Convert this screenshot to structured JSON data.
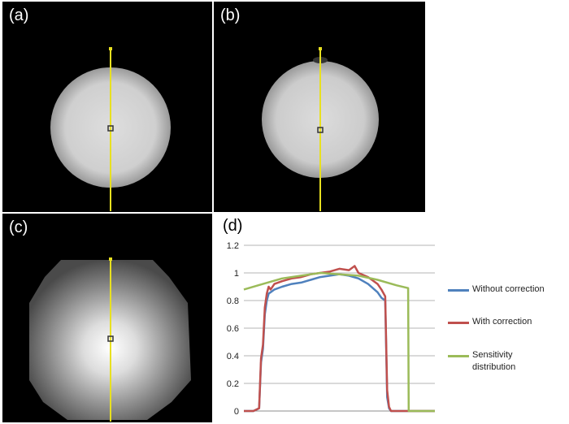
{
  "panels": {
    "a": {
      "label": "(a)"
    },
    "b": {
      "label": "(b)"
    },
    "c": {
      "label": "(c)"
    },
    "d": {
      "label": "(d)"
    }
  },
  "colors": {
    "yellow": "#e8e020",
    "without": "#4f81bd",
    "with": "#c0504d",
    "sensitivity": "#9bbb59"
  },
  "chart_data": {
    "type": "line",
    "title": "",
    "xlabel": "",
    "ylabel": "",
    "ylim": [
      0,
      1.2
    ],
    "yticks": [
      "0",
      "0.2",
      "0.4",
      "0.6",
      "0.8",
      "1",
      "1.2"
    ],
    "xlim": [
      0,
      100
    ],
    "series": [
      {
        "name": "Without correction",
        "color": "#4f81bd",
        "x": [
          0,
          5,
          8,
          9,
          10,
          11,
          12,
          13,
          14,
          16,
          20,
          25,
          30,
          35,
          40,
          45,
          50,
          55,
          60,
          65,
          70,
          72,
          74,
          75,
          76,
          77,
          80,
          85,
          90,
          95,
          100
        ],
        "y": [
          0,
          0,
          0.02,
          0.35,
          0.45,
          0.7,
          0.8,
          0.85,
          0.86,
          0.88,
          0.9,
          0.92,
          0.93,
          0.95,
          0.97,
          0.98,
          0.99,
          0.98,
          0.96,
          0.92,
          0.86,
          0.82,
          0.8,
          0.1,
          0.02,
          0,
          0,
          0,
          0,
          0,
          0
        ]
      },
      {
        "name": "With correction",
        "color": "#c0504d",
        "x": [
          0,
          5,
          8,
          9,
          10,
          11,
          12,
          13,
          14,
          16,
          20,
          25,
          30,
          35,
          40,
          45,
          50,
          55,
          58,
          60,
          65,
          70,
          72,
          74,
          75,
          76,
          77,
          80,
          85,
          90,
          95,
          100
        ],
        "y": [
          0,
          0,
          0.02,
          0.38,
          0.48,
          0.75,
          0.85,
          0.9,
          0.88,
          0.92,
          0.94,
          0.96,
          0.97,
          0.99,
          1.0,
          1.01,
          1.03,
          1.02,
          1.05,
          1.0,
          0.97,
          0.92,
          0.88,
          0.83,
          0.15,
          0.03,
          0,
          0,
          0,
          0,
          0,
          0
        ]
      },
      {
        "name": "Sensitivity distribution",
        "color": "#9bbb59",
        "x": [
          0,
          10,
          20,
          30,
          40,
          50,
          60,
          70,
          80,
          86,
          86.3,
          87,
          90,
          100
        ],
        "y": [
          0.88,
          0.92,
          0.96,
          0.98,
          1.0,
          0.99,
          0.98,
          0.95,
          0.91,
          0.89,
          0,
          0,
          0,
          0
        ]
      }
    ],
    "legend": [
      "Without correction",
      "With correction",
      "Sensitivity distribution"
    ],
    "legend_lines": [
      [
        "Without correction"
      ],
      [
        "With correction"
      ],
      [
        "Sensitivity",
        "distribution"
      ]
    ]
  }
}
